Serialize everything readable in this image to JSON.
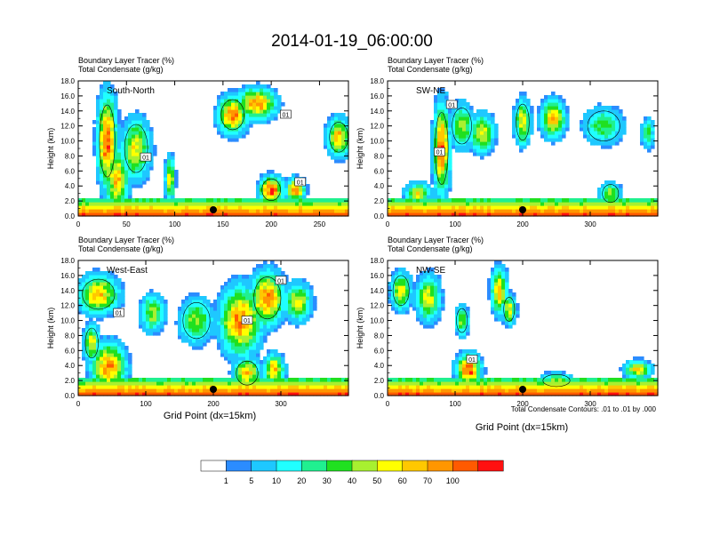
{
  "title": "2014-01-19_06:00:00",
  "contour_note": "Total Condensate Contours: .01 to .01 by .000",
  "xlabel": "Grid Point (dx=15km)",
  "colorbar": {
    "levels": [
      "1",
      "5",
      "10",
      "20",
      "30",
      "40",
      "50",
      "60",
      "70",
      "100"
    ],
    "colors": [
      "#ffffff",
      "#2b8cff",
      "#1ec8ff",
      "#20ffff",
      "#20f090",
      "#20e020",
      "#a8f030",
      "#ffff00",
      "#ffc800",
      "#ff9600",
      "#ff5a00",
      "#ff1010"
    ]
  },
  "chart_data": [
    {
      "type": "heatmap",
      "name": "South-North",
      "label": "South-North",
      "line1": "Boundary Layer Tracer   (%)",
      "line2": "Total Condensate   (g/kg)",
      "ylabel": "Height (km)",
      "xlabel": "",
      "xlim": [
        0,
        280
      ],
      "ylim": [
        0,
        18
      ],
      "xticks": [
        0,
        50,
        100,
        150,
        200,
        250
      ],
      "yticks": [
        "0.0",
        "2.0",
        "4.0",
        "6.0",
        "8.0",
        "10.0",
        "12.0",
        "14.0",
        "16.0",
        "18.0"
      ],
      "marker_x": 140,
      "contour_labels": [
        {
          "text": "01",
          "x": 215,
          "y": 13.5
        },
        {
          "text": "01",
          "x": 70,
          "y": 7.8
        },
        {
          "text": "01",
          "x": 230,
          "y": 4.5
        }
      ],
      "clouds": [
        {
          "x": 30,
          "y": 10,
          "rx": 10,
          "ry": 6,
          "v": 0.9
        },
        {
          "x": 40,
          "y": 5,
          "rx": 12,
          "ry": 4,
          "v": 0.7
        },
        {
          "x": 60,
          "y": 9,
          "rx": 15,
          "ry": 4,
          "v": 0.6
        },
        {
          "x": 95,
          "y": 5,
          "rx": 5,
          "ry": 3,
          "v": 0.6
        },
        {
          "x": 160,
          "y": 13.5,
          "rx": 15,
          "ry": 2.5,
          "v": 0.8
        },
        {
          "x": 185,
          "y": 15,
          "rx": 20,
          "ry": 2,
          "v": 0.8
        },
        {
          "x": 200,
          "y": 3.5,
          "rx": 12,
          "ry": 1.8,
          "v": 0.9
        },
        {
          "x": 225,
          "y": 3.5,
          "rx": 10,
          "ry": 1.5,
          "v": 0.8
        },
        {
          "x": 270,
          "y": 10.5,
          "rx": 12,
          "ry": 2.5,
          "v": 0.7
        }
      ]
    },
    {
      "type": "heatmap",
      "name": "SW-NE",
      "label": "SW-NE",
      "line1": "Boundary Layer Tracer   (%)",
      "line2": "Total Condensate   (g/kg)",
      "ylabel": "Height (km)",
      "xlabel": "",
      "xlim": [
        0,
        400
      ],
      "ylim": [
        0,
        18
      ],
      "xticks": [
        0,
        100,
        200,
        300
      ],
      "yticks": [
        "0.0",
        "2.0",
        "4.0",
        "6.0",
        "8.0",
        "10.0",
        "12.0",
        "14.0",
        "16.0",
        "18.0"
      ],
      "marker_x": 200,
      "contour_labels": [
        {
          "text": "01",
          "x": 95,
          "y": 14.8
        },
        {
          "text": "01",
          "x": 77,
          "y": 8.5
        }
      ],
      "clouds": [
        {
          "x": 80,
          "y": 9,
          "rx": 12,
          "ry": 6,
          "v": 0.85
        },
        {
          "x": 45,
          "y": 3,
          "rx": 18,
          "ry": 1.5,
          "v": 0.6
        },
        {
          "x": 110,
          "y": 12,
          "rx": 18,
          "ry": 3,
          "v": 0.5
        },
        {
          "x": 140,
          "y": 11,
          "rx": 18,
          "ry": 2.5,
          "v": 0.6
        },
        {
          "x": 200,
          "y": 12.5,
          "rx": 12,
          "ry": 3,
          "v": 0.6
        },
        {
          "x": 245,
          "y": 13,
          "rx": 18,
          "ry": 2.5,
          "v": 0.7
        },
        {
          "x": 320,
          "y": 12,
          "rx": 30,
          "ry": 2.5,
          "v": 0.4
        },
        {
          "x": 385,
          "y": 11,
          "rx": 10,
          "ry": 2,
          "v": 0.4
        },
        {
          "x": 330,
          "y": 3,
          "rx": 15,
          "ry": 1.5,
          "v": 0.5
        }
      ]
    },
    {
      "type": "heatmap",
      "name": "West-East",
      "label": "West-East",
      "line1": "Boundary Layer Tracer   (%)",
      "line2": "Total Condensate   (g/kg)",
      "ylabel": "Height (km)",
      "xlabel": "",
      "xlim": [
        0,
        400
      ],
      "ylim": [
        0,
        18
      ],
      "xticks": [
        0,
        100,
        200,
        300
      ],
      "yticks": [
        "0.0",
        "2.0",
        "4.0",
        "6.0",
        "8.0",
        "10.0",
        "12.0",
        "14.0",
        "16.0",
        "18.0"
      ],
      "marker_x": 200,
      "contour_labels": [
        {
          "text": "01",
          "x": 60,
          "y": 11
        },
        {
          "text": "01",
          "x": 250,
          "y": 10
        },
        {
          "text": "01",
          "x": 300,
          "y": 15.3
        }
      ],
      "clouds": [
        {
          "x": 30,
          "y": 13.5,
          "rx": 30,
          "ry": 2.5,
          "v": 0.7
        },
        {
          "x": 45,
          "y": 4,
          "rx": 25,
          "ry": 3,
          "v": 0.8
        },
        {
          "x": 20,
          "y": 7,
          "rx": 12,
          "ry": 2.5,
          "v": 0.6
        },
        {
          "x": 110,
          "y": 11,
          "rx": 18,
          "ry": 2.5,
          "v": 0.5
        },
        {
          "x": 175,
          "y": 10,
          "rx": 25,
          "ry": 3,
          "v": 0.5
        },
        {
          "x": 240,
          "y": 10,
          "rx": 30,
          "ry": 4.5,
          "v": 0.8
        },
        {
          "x": 280,
          "y": 13,
          "rx": 25,
          "ry": 3.5,
          "v": 0.8
        },
        {
          "x": 325,
          "y": 12.5,
          "rx": 20,
          "ry": 2.5,
          "v": 0.6
        },
        {
          "x": 250,
          "y": 3,
          "rx": 20,
          "ry": 2,
          "v": 0.7
        },
        {
          "x": 290,
          "y": 3.5,
          "rx": 15,
          "ry": 2,
          "v": 0.7
        }
      ]
    },
    {
      "type": "heatmap",
      "name": "NW-SE",
      "label": "NW-SE",
      "line1": "Boundary Layer Tracer   (%)",
      "line2": "Total Condensate   (g/kg)",
      "ylabel": "Height (km)",
      "xlabel": "Grid Point (dx=15km)",
      "xlim": [
        0,
        400
      ],
      "ylim": [
        0,
        18
      ],
      "xticks": [
        0,
        100,
        200,
        300
      ],
      "yticks": [
        "0.0",
        "2.0",
        "4.0",
        "6.0",
        "8.0",
        "10.0",
        "12.0",
        "14.0",
        "16.0",
        "18.0"
      ],
      "marker_x": 200,
      "contour_labels": [
        {
          "text": "01",
          "x": 125,
          "y": 4.8
        }
      ],
      "clouds": [
        {
          "x": 20,
          "y": 14,
          "rx": 15,
          "ry": 2.5,
          "v": 0.6
        },
        {
          "x": 60,
          "y": 13,
          "rx": 18,
          "ry": 3,
          "v": 0.6
        },
        {
          "x": 110,
          "y": 10,
          "rx": 10,
          "ry": 2,
          "v": 0.5
        },
        {
          "x": 165,
          "y": 14,
          "rx": 12,
          "ry": 3,
          "v": 0.7
        },
        {
          "x": 180,
          "y": 11.5,
          "rx": 10,
          "ry": 2,
          "v": 0.6
        },
        {
          "x": 120,
          "y": 3.5,
          "rx": 18,
          "ry": 2,
          "v": 0.9
        },
        {
          "x": 250,
          "y": 2,
          "rx": 25,
          "ry": 1,
          "v": 0.5
        },
        {
          "x": 370,
          "y": 3.5,
          "rx": 20,
          "ry": 1.2,
          "v": 0.6
        }
      ]
    }
  ]
}
